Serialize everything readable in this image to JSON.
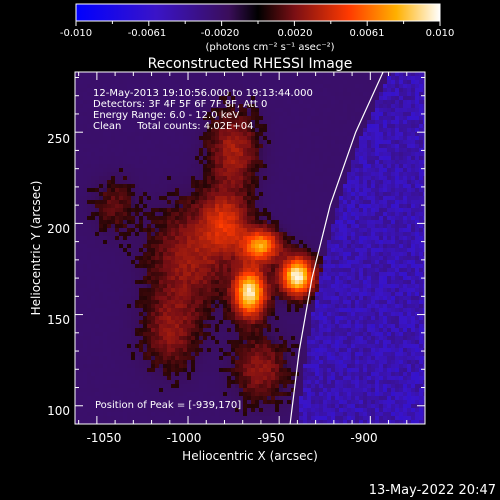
{
  "colorbar": {
    "tick_labels": [
      "-0.010",
      "-0.0061",
      "-0.0020",
      "0.0020",
      "0.0061",
      "0.010"
    ],
    "units_label": "(photons cm⁻² s⁻¹ asec⁻²)"
  },
  "title": "Reconstructed RHESSI Image",
  "info": {
    "line1": "12-May-2013 19:10:56.000 to 19:13:44.000",
    "line2": "Detectors: 3F 4F 5F 6F 7F 8F, Att 0",
    "line3": "Energy Range: 6.0 - 12.0 keV",
    "line4": "Clean     Total counts: 4.02E+04"
  },
  "peak_label": "Position of Peak = [-939,170]",
  "axes": {
    "xlabel": "Heliocentric X (arcsec)",
    "ylabel": "Heliocentric Y (arcsec)",
    "xticks": [
      "-1050",
      "-1000",
      "-950",
      "-900"
    ],
    "yticks": [
      "100",
      "150",
      "200",
      "250"
    ]
  },
  "footer_timestamp": "13-May-2022 20:47",
  "chart_data": {
    "type": "heatmap",
    "title": "Reconstructed RHESSI Image",
    "xlabel": "Heliocentric X (arcsec)",
    "ylabel": "Heliocentric Y (arcsec)",
    "xlim": [
      -1062,
      -870
    ],
    "ylim": [
      90,
      283
    ],
    "colorbar_range": [
      -0.01,
      0.01
    ],
    "peak": [
      -939,
      170
    ],
    "limb_points": [
      [
        -944,
        90
      ],
      [
        -939,
        130
      ],
      [
        -932,
        170
      ],
      [
        -922,
        210
      ],
      [
        -908,
        250
      ],
      [
        -893,
        283
      ]
    ],
    "sources": [
      {
        "x": -966,
        "y": 162,
        "sx": 6,
        "sy": 9,
        "amp": 0.0095
      },
      {
        "x": -940,
        "y": 171,
        "sx": 6,
        "sy": 7,
        "amp": 0.01
      },
      {
        "x": -960,
        "y": 188,
        "sx": 7,
        "sy": 6,
        "amp": 0.0072
      },
      {
        "x": -980,
        "y": 200,
        "sx": 9,
        "sy": 12,
        "amp": 0.004
      },
      {
        "x": -975,
        "y": 240,
        "sx": 9,
        "sy": 14,
        "amp": 0.003
      },
      {
        "x": -1000,
        "y": 180,
        "sx": 14,
        "sy": 20,
        "amp": 0.0026
      },
      {
        "x": -1010,
        "y": 140,
        "sx": 10,
        "sy": 14,
        "amp": 0.0022
      },
      {
        "x": -960,
        "y": 120,
        "sx": 10,
        "sy": 12,
        "amp": 0.0024
      },
      {
        "x": -1040,
        "y": 210,
        "sx": 8,
        "sy": 10,
        "amp": 0.0015
      }
    ],
    "colors": {
      "background": "#000000",
      "limb_line": "#ffffff",
      "negative_end": "#0000ff",
      "zero_level": "#000000",
      "positive_end": "#ffffff"
    }
  }
}
